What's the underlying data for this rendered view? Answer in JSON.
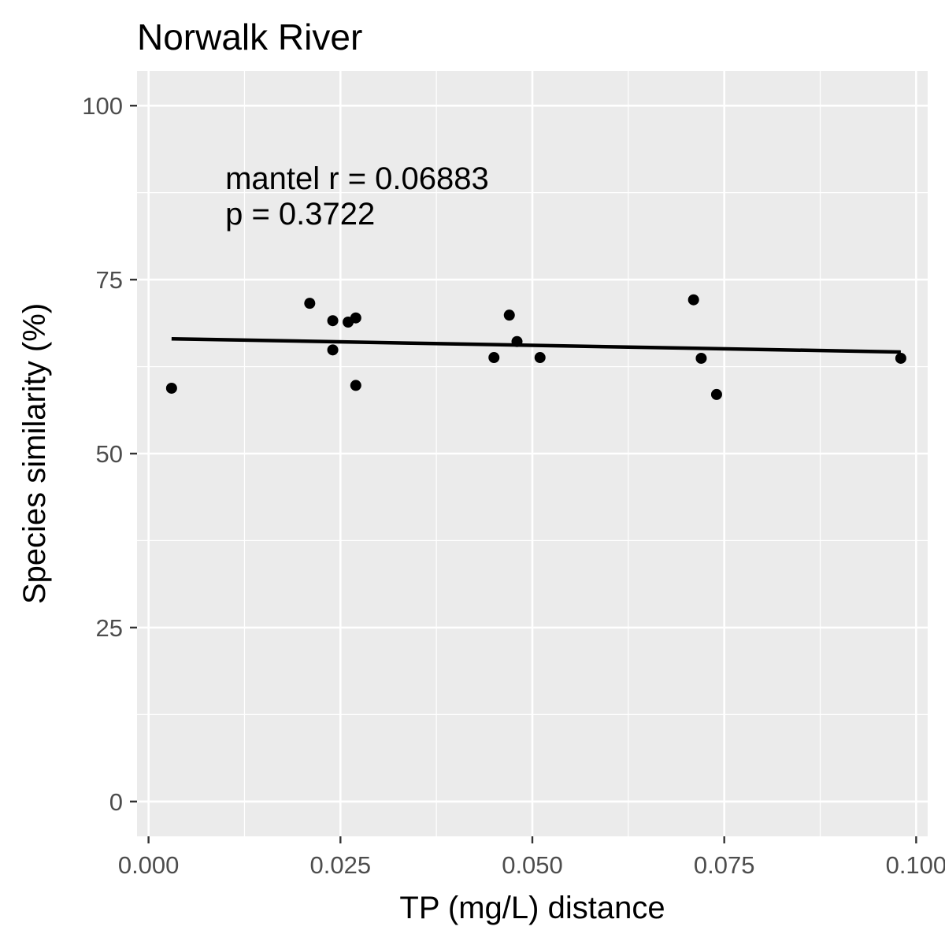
{
  "chart_data": {
    "type": "scatter",
    "title": "Norwalk River",
    "xlabel": "TP (mg/L) distance",
    "ylabel": "Species similarity (%)",
    "xlim": [
      -0.0015,
      0.1015
    ],
    "ylim": [
      -5,
      105
    ],
    "x_ticks": [
      0,
      0.025,
      0.05,
      0.075,
      0.1
    ],
    "x_tick_labels": [
      "0.000",
      "0.025",
      "0.050",
      "0.075",
      "0.100"
    ],
    "y_ticks": [
      0,
      25,
      50,
      75,
      100
    ],
    "y_tick_labels": [
      "0",
      "25",
      "50",
      "75",
      "100"
    ],
    "grid": true,
    "background": "#ebebeb",
    "point_color": "#000000",
    "points": [
      {
        "x": 0.003,
        "y": 59.4
      },
      {
        "x": 0.021,
        "y": 71.6
      },
      {
        "x": 0.024,
        "y": 69.1
      },
      {
        "x": 0.024,
        "y": 64.9
      },
      {
        "x": 0.026,
        "y": 68.9
      },
      {
        "x": 0.027,
        "y": 69.5
      },
      {
        "x": 0.027,
        "y": 59.8
      },
      {
        "x": 0.045,
        "y": 63.8
      },
      {
        "x": 0.047,
        "y": 69.9
      },
      {
        "x": 0.048,
        "y": 66.1
      },
      {
        "x": 0.051,
        "y": 63.8
      },
      {
        "x": 0.071,
        "y": 72.1
      },
      {
        "x": 0.072,
        "y": 63.7
      },
      {
        "x": 0.074,
        "y": 58.5
      },
      {
        "x": 0.098,
        "y": 63.7
      }
    ],
    "fit_line": {
      "x": [
        0.003,
        0.098
      ],
      "y": [
        66.5,
        64.6
      ]
    },
    "annotations": [
      "mantel r = 0.06883",
      "p = 0.3722"
    ],
    "annotation_position": {
      "x": 0.01,
      "y": 86
    }
  }
}
